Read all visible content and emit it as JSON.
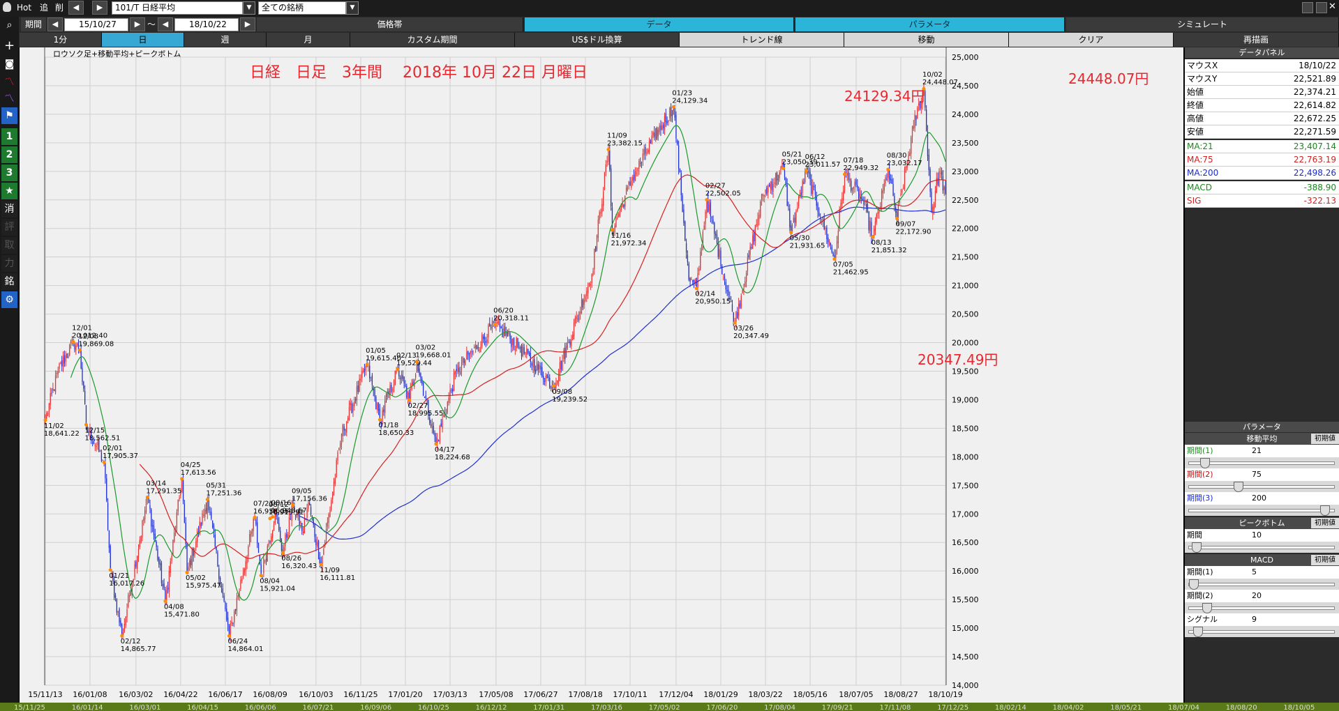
{
  "toolbar": {
    "hot_label": "Hot",
    "back_label": "追",
    "prev_label": "削",
    "symbol": "101/T 日経平均",
    "universe": "全ての銘柄",
    "period_label": "期間",
    "from_date": "15/10/27",
    "tilde": "～",
    "to_date": "18/10/22"
  },
  "tabs_row1": [
    {
      "label": "価格帯"
    },
    {
      "label": "データ"
    },
    {
      "label": "パラメータ"
    },
    {
      "label": "シミュレート"
    }
  ],
  "tabs_row2": [
    {
      "label": "1分"
    },
    {
      "label": "日"
    },
    {
      "label": "週"
    },
    {
      "label": "月"
    },
    {
      "label": "カスタム期間"
    },
    {
      "label": "US$ドル換算"
    },
    {
      "label": "トレンド線"
    },
    {
      "label": "移動"
    },
    {
      "label": "クリア"
    },
    {
      "label": "再描画"
    }
  ],
  "sidebar": {
    "items": [
      "1",
      "2",
      "3",
      "消",
      "評",
      "取",
      "力",
      "銘"
    ]
  },
  "chart_data": {
    "type": "candlestick",
    "indicator_label": "ロウソク足+移動平均+ピークボトム",
    "title": "日経　日足　3年間　 2018年 10月 22日 月曜日",
    "y_ticks": [
      "25,000",
      "24,500",
      "24,000",
      "23,500",
      "23,000",
      "22,500",
      "22,000",
      "21,500",
      "21,000",
      "20,500",
      "20,000",
      "19,500",
      "19,000",
      "18,500",
      "18,000",
      "17,500",
      "17,000",
      "16,500",
      "16,000",
      "15,500",
      "15,000",
      "14,500",
      "14,000"
    ],
    "ylim": [
      14000,
      25000
    ],
    "x_ticks": [
      "15/11/13",
      "16/01/08",
      "16/03/02",
      "16/04/22",
      "16/06/17",
      "16/08/09",
      "16/10/03",
      "16/11/25",
      "17/01/20",
      "17/03/13",
      "17/05/08",
      "17/06/27",
      "17/08/18",
      "17/10/11",
      "17/12/04",
      "18/01/29",
      "18/03/22",
      "18/05/16",
      "18/07/05",
      "18/08/27",
      "18/10/19"
    ],
    "bottom_ticks": [
      "15/11/25",
      "16/01/14",
      "16/03/01",
      "16/04/15",
      "16/06/06",
      "16/07/21",
      "16/09/06",
      "16/10/25",
      "16/12/12",
      "17/01/31",
      "17/03/16",
      "17/05/02",
      "17/06/20",
      "17/08/04",
      "17/09/21",
      "17/11/08",
      "17/12/25",
      "18/02/14",
      "18/04/02",
      "18/05/21",
      "18/07/04",
      "18/08/20",
      "18/10/05"
    ],
    "highlights": [
      {
        "text": "24129.34円"
      },
      {
        "text": "24448.07円"
      },
      {
        "text": "20347.49円"
      }
    ],
    "peaks_bottoms": [
      {
        "date": "11/02",
        "value": "18,641.22",
        "type": "bottom"
      },
      {
        "date": "12/01",
        "value": "20,012.40",
        "type": "peak"
      },
      {
        "date": "12/08",
        "value": "19,869.08",
        "type": "peak"
      },
      {
        "date": "12/15",
        "value": "18,562.51",
        "type": "bottom"
      },
      {
        "date": "02/01",
        "value": "17,905.37",
        "type": "peak"
      },
      {
        "date": "01/21",
        "value": "16,017.26",
        "type": "bottom"
      },
      {
        "date": "02/12",
        "value": "14,865.77",
        "type": "bottom"
      },
      {
        "date": "03/14",
        "value": "17,291.35",
        "type": "peak"
      },
      {
        "date": "04/08",
        "value": "15,471.80",
        "type": "bottom"
      },
      {
        "date": "04/25",
        "value": "17,613.56",
        "type": "peak"
      },
      {
        "date": "05/02",
        "value": "15,975.47",
        "type": "bottom"
      },
      {
        "date": "05/31",
        "value": "17,251.36",
        "type": "peak"
      },
      {
        "date": "06/24",
        "value": "14,864.01",
        "type": "bottom"
      },
      {
        "date": "07/21",
        "value": "16,938.05",
        "type": "peak"
      },
      {
        "date": "08/12",
        "value": "16,919.92",
        "type": "peak"
      },
      {
        "date": "08/16",
        "value": "16,948.67",
        "type": "peak"
      },
      {
        "date": "08/04",
        "value": "15,921.04",
        "type": "bottom"
      },
      {
        "date": "08/26",
        "value": "16,320.43",
        "type": "bottom"
      },
      {
        "date": "09/05",
        "value": "17,156.36",
        "type": "peak"
      },
      {
        "date": "11/09",
        "value": "16,111.81",
        "type": "bottom"
      },
      {
        "date": "01/05",
        "value": "19,615.40",
        "type": "peak"
      },
      {
        "date": "01/18",
        "value": "18,650.33",
        "type": "bottom"
      },
      {
        "date": "02/13",
        "value": "19,529.44",
        "type": "peak"
      },
      {
        "date": "03/02",
        "value": "19,668.01",
        "type": "peak"
      },
      {
        "date": "02/27",
        "value": "18,995.55",
        "type": "bottom"
      },
      {
        "date": "04/17",
        "value": "18,224.68",
        "type": "bottom"
      },
      {
        "date": "06/20",
        "value": "20,318.11",
        "type": "peak"
      },
      {
        "date": "09/08",
        "value": "19,239.52",
        "type": "bottom"
      },
      {
        "date": "11/09",
        "value": "23,382.15",
        "type": "peak"
      },
      {
        "date": "11/16",
        "value": "21,972.34",
        "type": "bottom"
      },
      {
        "date": "01/23",
        "value": "24,129.34",
        "type": "peak"
      },
      {
        "date": "02/27",
        "value": "22,502.05",
        "type": "peak"
      },
      {
        "date": "02/14",
        "value": "20,950.15",
        "type": "bottom"
      },
      {
        "date": "03/26",
        "value": "20,347.49",
        "type": "bottom"
      },
      {
        "date": "05/21",
        "value": "23,050.39",
        "type": "peak"
      },
      {
        "date": "06/12",
        "value": "23,011.57",
        "type": "peak"
      },
      {
        "date": "05/30",
        "value": "21,931.65",
        "type": "bottom"
      },
      {
        "date": "07/18",
        "value": "22,949.32",
        "type": "peak"
      },
      {
        "date": "07/05",
        "value": "21,462.95",
        "type": "bottom"
      },
      {
        "date": "08/30",
        "value": "23,032.17",
        "type": "peak"
      },
      {
        "date": "08/13",
        "value": "21,851.32",
        "type": "bottom"
      },
      {
        "date": "10/02",
        "value": "24,448.07",
        "type": "peak"
      },
      {
        "date": "09/07",
        "value": "22,172.90",
        "type": "bottom"
      }
    ],
    "ohlc_keypoints": [
      {
        "i": 0,
        "v": 18641
      },
      {
        "i": 10,
        "v": 19500
      },
      {
        "i": 22,
        "v": 20012
      },
      {
        "i": 27,
        "v": 19869
      },
      {
        "i": 32,
        "v": 18563
      },
      {
        "i": 46,
        "v": 17905
      },
      {
        "i": 51,
        "v": 16017
      },
      {
        "i": 60,
        "v": 14866
      },
      {
        "i": 80,
        "v": 17291
      },
      {
        "i": 94,
        "v": 15472
      },
      {
        "i": 107,
        "v": 17614
      },
      {
        "i": 111,
        "v": 15975
      },
      {
        "i": 127,
        "v": 17251
      },
      {
        "i": 144,
        "v": 14864
      },
      {
        "i": 164,
        "v": 16938
      },
      {
        "i": 169,
        "v": 15921
      },
      {
        "i": 180,
        "v": 17000
      },
      {
        "i": 186,
        "v": 16320
      },
      {
        "i": 194,
        "v": 17156
      },
      {
        "i": 202,
        "v": 16700
      },
      {
        "i": 206,
        "v": 17200
      },
      {
        "i": 216,
        "v": 16112
      },
      {
        "i": 232,
        "v": 18400
      },
      {
        "i": 252,
        "v": 19615
      },
      {
        "i": 262,
        "v": 18650
      },
      {
        "i": 276,
        "v": 19529
      },
      {
        "i": 285,
        "v": 18996
      },
      {
        "i": 291,
        "v": 19668
      },
      {
        "i": 306,
        "v": 18225
      },
      {
        "i": 322,
        "v": 19500
      },
      {
        "i": 352,
        "v": 20318
      },
      {
        "i": 372,
        "v": 19900
      },
      {
        "i": 398,
        "v": 19240
      },
      {
        "i": 428,
        "v": 21200
      },
      {
        "i": 441,
        "v": 23382
      },
      {
        "i": 444,
        "v": 21972
      },
      {
        "i": 460,
        "v": 22900
      },
      {
        "i": 477,
        "v": 23600
      },
      {
        "i": 492,
        "v": 24129
      },
      {
        "i": 504,
        "v": 21100
      },
      {
        "i": 510,
        "v": 20950
      },
      {
        "i": 518,
        "v": 22502
      },
      {
        "i": 540,
        "v": 20347
      },
      {
        "i": 562,
        "v": 22600
      },
      {
        "i": 578,
        "v": 23050
      },
      {
        "i": 584,
        "v": 21932
      },
      {
        "i": 596,
        "v": 23012
      },
      {
        "i": 618,
        "v": 21463
      },
      {
        "i": 626,
        "v": 22949
      },
      {
        "i": 640,
        "v": 22500
      },
      {
        "i": 648,
        "v": 21851
      },
      {
        "i": 660,
        "v": 23032
      },
      {
        "i": 667,
        "v": 22173
      },
      {
        "i": 680,
        "v": 23800
      },
      {
        "i": 688,
        "v": 24448
      },
      {
        "i": 694,
        "v": 22300
      },
      {
        "i": 700,
        "v": 23000
      },
      {
        "i": 705,
        "v": 22615
      }
    ],
    "n_candles": 706,
    "ma_colors": {
      "ma21": "#1a9a2a",
      "ma75": "#d62020",
      "ma200": "#1f2fd0"
    },
    "up_color": "#e53030",
    "down_color": "#1f2fd0"
  },
  "data_panel": {
    "title": "データパネル",
    "rows": [
      {
        "label": "マウスX",
        "value": "18/10/22"
      },
      {
        "label": "マウスY",
        "value": "22,521.89"
      },
      {
        "label": "始値",
        "value": "22,374.21"
      },
      {
        "label": "終値",
        "value": "22,614.82"
      },
      {
        "label": "高値",
        "value": "22,672.25"
      },
      {
        "label": "安値",
        "value": "22,271.59"
      },
      {
        "label": "MA:21",
        "value": "23,407.14"
      },
      {
        "label": "MA:75",
        "value": "22,763.19"
      },
      {
        "label": "MA:200",
        "value": "22,498.26"
      },
      {
        "label": "MACD",
        "value": "-388.90"
      },
      {
        "label": "SIG",
        "value": "-322.13"
      }
    ],
    "colors": {
      "ma21": "#1a8a1a",
      "ma75": "#d42020",
      "ma200": "#1a2ad0",
      "macd": "#1a8a1a",
      "sig": "#d42020"
    }
  },
  "params_panel": {
    "title": "パラメータ",
    "sections": [
      {
        "title": "移動平均",
        "reset": "初期値",
        "fields": [
          {
            "label": "期間(1)",
            "value": "21",
            "pos": 0.08,
            "color": "#1a8a1a"
          },
          {
            "label": "期間(2)",
            "value": "75",
            "pos": 0.33,
            "color": "#c01010"
          },
          {
            "label": "期間(3)",
            "value": "200",
            "pos": 0.97,
            "color": "#1a2ad0"
          }
        ]
      },
      {
        "title": "ピークボトム",
        "reset": "初期値",
        "fields": [
          {
            "label": "期間",
            "value": "10",
            "pos": 0.02,
            "color": "#000"
          }
        ]
      },
      {
        "title": "MACD",
        "reset": "初期値",
        "fields": [
          {
            "label": "期間(1)",
            "value": "5",
            "pos": 0.0,
            "color": "#000"
          },
          {
            "label": "期間(2)",
            "value": "20",
            "pos": 0.1,
            "color": "#000"
          },
          {
            "label": "シグナル",
            "value": "9",
            "pos": 0.03,
            "color": "#000"
          }
        ]
      }
    ]
  }
}
